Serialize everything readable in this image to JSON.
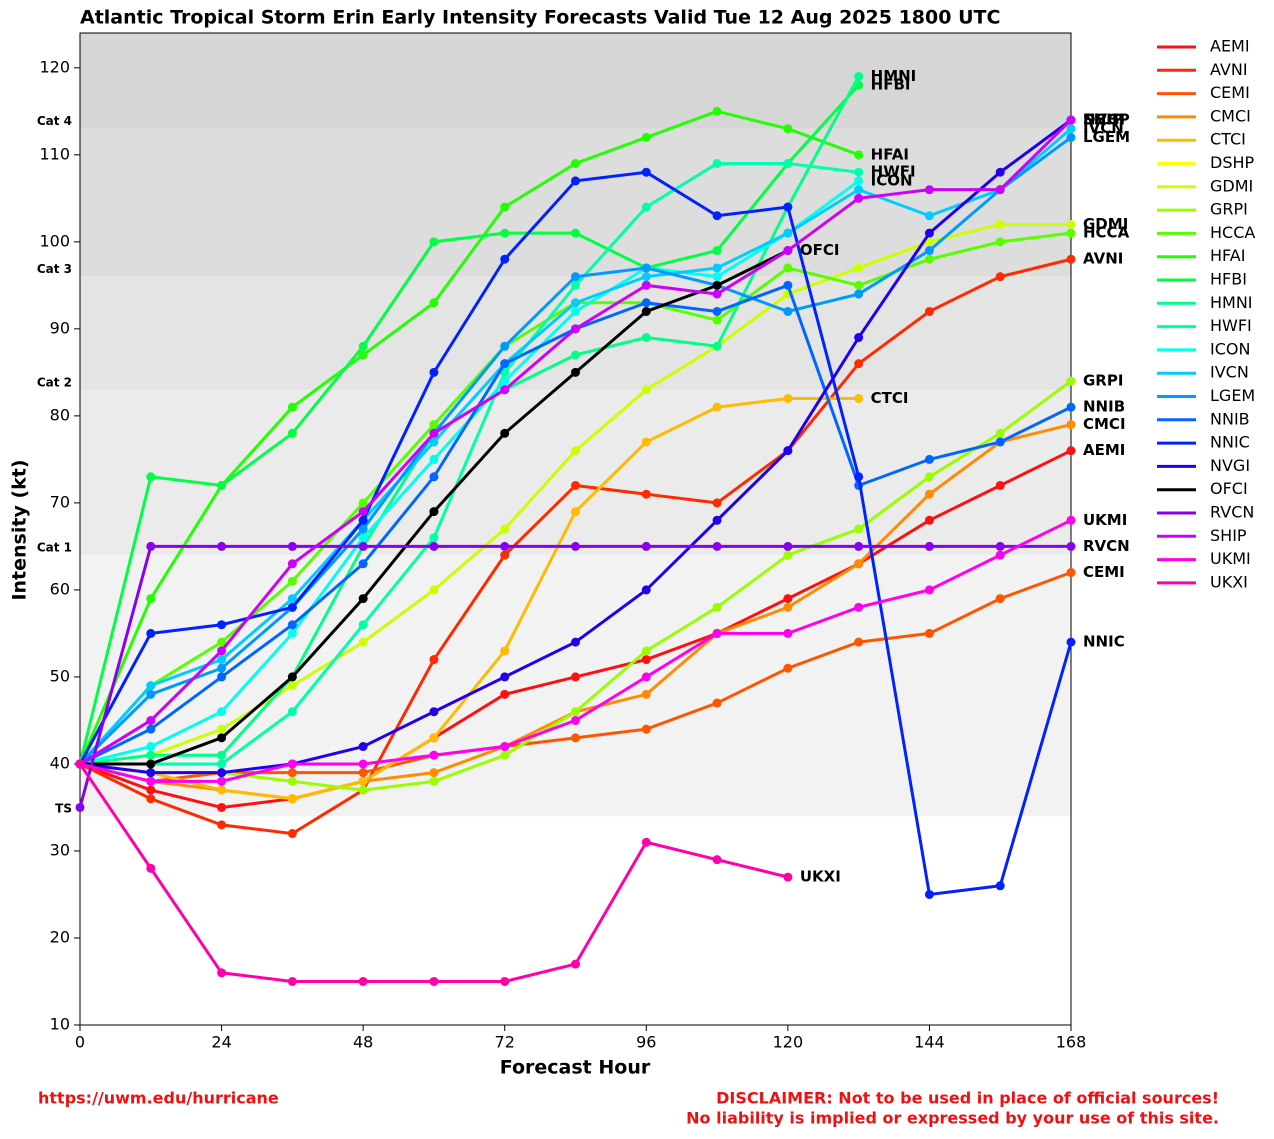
{
  "chart_data": {
    "type": "line",
    "title": "Atlantic Tropical Storm Erin Early Intensity Forecasts Valid Tue 12 Aug 2025 1800 UTC",
    "xlabel": "Forecast Hour",
    "ylabel": "Intensity (kt)",
    "x": [
      0,
      12,
      24,
      36,
      48,
      60,
      72,
      84,
      96,
      108,
      120,
      132,
      144,
      156,
      168
    ],
    "xlim": [
      0,
      168
    ],
    "xticks": [
      0,
      24,
      48,
      72,
      96,
      120,
      144,
      168
    ],
    "ylim": [
      10,
      124
    ],
    "yticks": [
      10,
      20,
      30,
      40,
      50,
      60,
      70,
      80,
      90,
      100,
      110,
      120
    ],
    "bands": [
      {
        "label": "TS",
        "value": 34,
        "color": "#f2f2f2"
      },
      {
        "label": "Cat 1",
        "value": 64,
        "color": "#ebebeb"
      },
      {
        "label": "Cat 2",
        "value": 83,
        "color": "#e4e4e4"
      },
      {
        "label": "Cat 3",
        "value": 96,
        "color": "#dddddd"
      },
      {
        "label": "Cat 4",
        "value": 113,
        "color": "#d6d6d6"
      }
    ],
    "legend": "outside-right",
    "series": [
      {
        "name": "AEMI",
        "color": "#ff1010",
        "values": [
          40,
          37,
          35,
          36,
          38,
          43,
          48,
          50,
          52,
          55,
          59,
          63,
          68,
          72,
          76
        ]
      },
      {
        "name": "AVNI",
        "color": "#ff2a00",
        "values": [
          40,
          36,
          33,
          32,
          37,
          52,
          64,
          72,
          71,
          70,
          76,
          86,
          92,
          96,
          98
        ]
      },
      {
        "name": "CEMI",
        "color": "#ff5500",
        "values": [
          40,
          38,
          39,
          39,
          39,
          41,
          42,
          43,
          44,
          47,
          51,
          54,
          55,
          59,
          62
        ]
      },
      {
        "name": "CMCI",
        "color": "#ff8c00",
        "values": [
          40,
          38,
          37,
          36,
          38,
          39,
          42,
          46,
          48,
          55,
          58,
          63,
          71,
          77,
          79
        ]
      },
      {
        "name": "CTCI",
        "color": "#ffbb00",
        "values": [
          40,
          39,
          37,
          36,
          38,
          43,
          53,
          69,
          77,
          81,
          82,
          82,
          null,
          null,
          null
        ]
      },
      {
        "name": "DSHP",
        "color": "#ffff00",
        "values": [
          40,
          45,
          53,
          63,
          69,
          78,
          83,
          90,
          95,
          94,
          99,
          105,
          106,
          106,
          114
        ]
      },
      {
        "name": "GDMI",
        "color": "#ccff00",
        "values": [
          40,
          41,
          44,
          49,
          54,
          60,
          67,
          76,
          83,
          88,
          94,
          97,
          100,
          102,
          102
        ]
      },
      {
        "name": "GRPI",
        "color": "#99ff00",
        "values": [
          40,
          39,
          39,
          38,
          37,
          38,
          41,
          46,
          53,
          58,
          64,
          67,
          73,
          78,
          84
        ]
      },
      {
        "name": "HCCA",
        "color": "#55ff00",
        "values": [
          40,
          49,
          54,
          61,
          70,
          79,
          88,
          93,
          93,
          91,
          97,
          95,
          98,
          100,
          101
        ]
      },
      {
        "name": "HFAI",
        "color": "#22ff00",
        "values": [
          40,
          59,
          72,
          81,
          87,
          93,
          104,
          109,
          112,
          115,
          113,
          110,
          null,
          null,
          null
        ]
      },
      {
        "name": "HFBI",
        "color": "#00ff44",
        "values": [
          40,
          73,
          72,
          78,
          88,
          100,
          101,
          101,
          97,
          99,
          109,
          118,
          null,
          null,
          null
        ]
      },
      {
        "name": "HMNI",
        "color": "#00ff88",
        "values": [
          40,
          41,
          41,
          50,
          65,
          78,
          83,
          87,
          89,
          88,
          104,
          119,
          null,
          null,
          null
        ]
      },
      {
        "name": "HWFI",
        "color": "#00ffaa",
        "values": [
          40,
          40,
          40,
          46,
          56,
          66,
          85,
          95,
          104,
          109,
          109,
          108,
          null,
          null,
          null
        ]
      },
      {
        "name": "ICON",
        "color": "#00ffee",
        "values": [
          40,
          42,
          46,
          55,
          66,
          75,
          84,
          92,
          97,
          96,
          101,
          107,
          null,
          null,
          null
        ]
      },
      {
        "name": "IVCN",
        "color": "#00ccff",
        "values": [
          40,
          49,
          52,
          59,
          68,
          77,
          86,
          93,
          96,
          97,
          101,
          106,
          103,
          106,
          113
        ]
      },
      {
        "name": "LGEM",
        "color": "#0099ff",
        "values": [
          40,
          48,
          51,
          58,
          67,
          78,
          88,
          96,
          97,
          95,
          92,
          94,
          99,
          106,
          112
        ]
      },
      {
        "name": "NNIB",
        "color": "#0066ff",
        "values": [
          40,
          44,
          50,
          56,
          63,
          73,
          86,
          90,
          93,
          92,
          95,
          72,
          75,
          77,
          81
        ]
      },
      {
        "name": "NNIC",
        "color": "#0022ff",
        "values": [
          40,
          55,
          56,
          58,
          68,
          85,
          98,
          107,
          108,
          103,
          104,
          73,
          25,
          26,
          54
        ]
      },
      {
        "name": "NVGI",
        "color": "#2200ee",
        "values": [
          40,
          39,
          39,
          40,
          42,
          46,
          50,
          54,
          60,
          68,
          76,
          89,
          101,
          108,
          114
        ]
      },
      {
        "name": "OFCI",
        "color": "#000000",
        "values": [
          40,
          40,
          43,
          50,
          59,
          69,
          78,
          85,
          92,
          95,
          99,
          null,
          null,
          null,
          null
        ]
      },
      {
        "name": "RVCN",
        "color": "#8800ee",
        "values": [
          35,
          65,
          65,
          65,
          65,
          65,
          65,
          65,
          65,
          65,
          65,
          65,
          65,
          65,
          65
        ]
      },
      {
        "name": "SHIP",
        "color": "#cc00ff",
        "values": [
          40,
          45,
          53,
          63,
          69,
          78,
          83,
          90,
          95,
          94,
          99,
          105,
          106,
          106,
          114
        ]
      },
      {
        "name": "UKMI",
        "color": "#ff00ee",
        "values": [
          40,
          38,
          38,
          40,
          40,
          41,
          42,
          45,
          50,
          55,
          55,
          58,
          60,
          64,
          68
        ]
      },
      {
        "name": "UKXI",
        "color": "#ff00aa",
        "values": [
          40,
          28,
          16,
          15,
          15,
          15,
          15,
          17,
          31,
          29,
          27,
          null,
          null,
          null,
          null
        ]
      }
    ]
  },
  "footer": {
    "url": "https://uwm.edu/hurricane",
    "disclaimer": [
      "DISCLAIMER: Not to be used in place of official sources!",
      "No liability is implied or expressed by your use of this site."
    ]
  }
}
